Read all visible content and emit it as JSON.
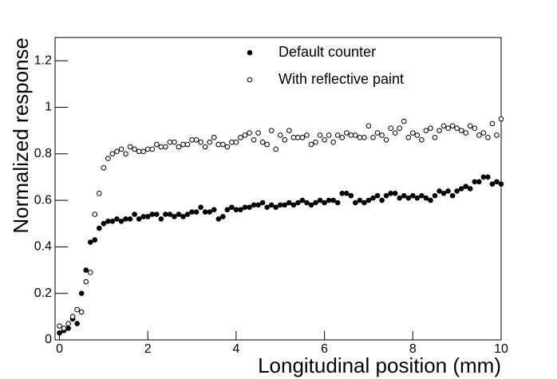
{
  "chart_data": {
    "type": "scatter",
    "x_label": "Longitudinal position (mm)",
    "y_label": "Normalized response",
    "xlim": [
      -0.1,
      10
    ],
    "ylim": [
      0,
      1.3
    ],
    "xticks": [
      0,
      2,
      4,
      6,
      8,
      10
    ],
    "yticks": [
      0,
      0.2,
      0.4,
      0.6,
      0.8,
      1,
      1.2
    ],
    "legend": "top",
    "x": [
      0,
      0.1,
      0.2,
      0.3,
      0.4,
      0.5,
      0.6,
      0.7,
      0.8,
      0.9,
      1,
      1.1,
      1.2,
      1.3,
      1.4,
      1.5,
      1.6,
      1.7,
      1.8,
      1.9,
      2,
      2.1,
      2.2,
      2.3,
      2.4,
      2.5,
      2.6,
      2.7,
      2.8,
      2.9,
      3,
      3.1,
      3.2,
      3.3,
      3.4,
      3.5,
      3.6,
      3.7,
      3.8,
      3.9,
      4,
      4.1,
      4.2,
      4.3,
      4.4,
      4.5,
      4.6,
      4.7,
      4.8,
      4.9,
      5,
      5.1,
      5.2,
      5.3,
      5.4,
      5.5,
      5.6,
      5.7,
      5.8,
      5.9,
      6,
      6.1,
      6.2,
      6.3,
      6.4,
      6.5,
      6.6,
      6.7,
      6.8,
      6.9,
      7,
      7.1,
      7.2,
      7.3,
      7.4,
      7.5,
      7.6,
      7.7,
      7.8,
      7.9,
      8,
      8.1,
      8.2,
      8.3,
      8.4,
      8.5,
      8.6,
      8.7,
      8.8,
      8.9,
      9,
      9.1,
      9.2,
      9.3,
      9.4,
      9.5,
      9.6,
      9.7,
      9.8,
      9.9,
      10
    ],
    "series": [
      {
        "name": "Default counter",
        "color": "#000000",
        "marker": "filled",
        "values": [
          0.03,
          0.04,
          0.05,
          0.09,
          0.07,
          0.2,
          0.3,
          0.42,
          0.43,
          0.48,
          0.5,
          0.51,
          0.51,
          0.52,
          0.51,
          0.52,
          0.52,
          0.54,
          0.52,
          0.53,
          0.53,
          0.54,
          0.54,
          0.52,
          0.54,
          0.54,
          0.53,
          0.54,
          0.53,
          0.54,
          0.55,
          0.55,
          0.57,
          0.55,
          0.55,
          0.56,
          0.52,
          0.53,
          0.56,
          0.57,
          0.56,
          0.56,
          0.57,
          0.57,
          0.58,
          0.58,
          0.59,
          0.57,
          0.58,
          0.57,
          0.58,
          0.58,
          0.59,
          0.58,
          0.59,
          0.6,
          0.59,
          0.58,
          0.59,
          0.6,
          0.59,
          0.6,
          0.6,
          0.59,
          0.63,
          0.63,
          0.62,
          0.59,
          0.6,
          0.59,
          0.6,
          0.61,
          0.62,
          0.6,
          0.62,
          0.63,
          0.63,
          0.61,
          0.62,
          0.61,
          0.62,
          0.61,
          0.62,
          0.61,
          0.6,
          0.62,
          0.64,
          0.63,
          0.64,
          0.62,
          0.64,
          0.65,
          0.66,
          0.65,
          0.68,
          0.68,
          0.7,
          0.7,
          0.67,
          0.68,
          0.67
        ]
      },
      {
        "name": "With reflective paint",
        "color": "#000000",
        "marker": "open",
        "values": [
          0.06,
          0.05,
          0.07,
          0.1,
          0.13,
          0.12,
          0.25,
          0.29,
          0.54,
          0.63,
          0.74,
          0.78,
          0.8,
          0.81,
          0.82,
          0.8,
          0.83,
          0.82,
          0.81,
          0.81,
          0.82,
          0.82,
          0.84,
          0.83,
          0.83,
          0.85,
          0.85,
          0.83,
          0.84,
          0.84,
          0.86,
          0.86,
          0.85,
          0.83,
          0.85,
          0.87,
          0.84,
          0.84,
          0.83,
          0.85,
          0.85,
          0.87,
          0.88,
          0.89,
          0.86,
          0.89,
          0.85,
          0.84,
          0.9,
          0.82,
          0.88,
          0.86,
          0.9,
          0.87,
          0.87,
          0.87,
          0.88,
          0.84,
          0.85,
          0.88,
          0.86,
          0.88,
          0.85,
          0.88,
          0.87,
          0.89,
          0.88,
          0.88,
          0.87,
          0.87,
          0.92,
          0.87,
          0.89,
          0.88,
          0.86,
          0.91,
          0.89,
          0.91,
          0.94,
          0.87,
          0.89,
          0.88,
          0.86,
          0.9,
          0.91,
          0.87,
          0.9,
          0.92,
          0.91,
          0.92,
          0.91,
          0.9,
          0.89,
          0.92,
          0.91,
          0.88,
          0.89,
          0.87,
          0.93,
          0.88,
          0.95
        ]
      }
    ]
  }
}
